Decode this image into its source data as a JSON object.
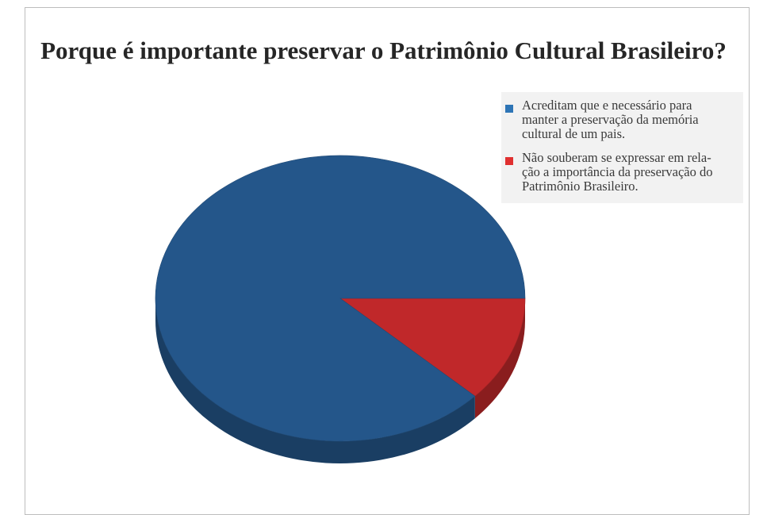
{
  "chart_data": {
    "type": "pie",
    "title": "Porque é importante preservar o Patrimônio Cultural Brasileiro?",
    "style": "3d",
    "legend_position": "top-right",
    "slices": [
      {
        "label": "Acreditam que e necessário para manter a preservação da memória cultural de um pais.",
        "lines": [
          "Acreditam que e necessário para",
          "manter a preservação da memória",
          "cultural de um pais."
        ],
        "value": 88,
        "color": "#24568a"
      },
      {
        "label": "Não souberam se expressar em rela- ção a importância da preservação do Patrimônio Brasileiro.",
        "lines": [
          "Não souberam se expressar em rela-",
          "ção a importância da preservação do",
          "Patrimônio Brasileiro."
        ],
        "value": 12,
        "color": "#c0282a"
      }
    ]
  }
}
